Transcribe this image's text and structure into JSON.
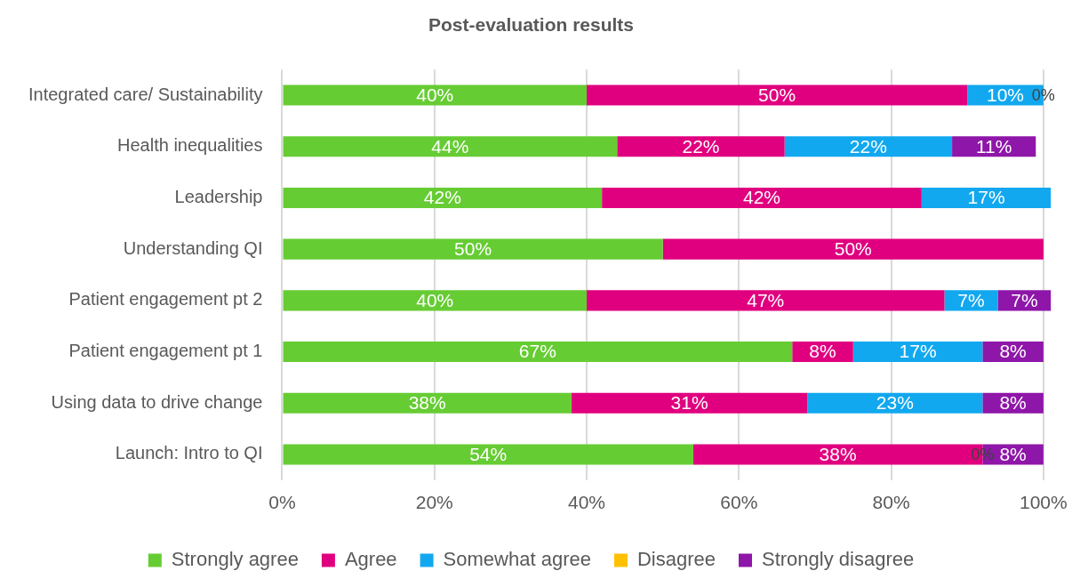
{
  "chart_data": {
    "type": "bar",
    "title": "Post-evaluation results",
    "orientation": "horizontal",
    "stacked": true,
    "categories": [
      "Integrated care/ Sustainability",
      "Health inequalities",
      "Leadership",
      "Understanding QI",
      "Patient engagement pt 2",
      "Patient engagement pt 1",
      "Using data to drive change",
      "Launch: Intro to QI"
    ],
    "series": [
      {
        "name": "Strongly agree",
        "color": "#66cc33",
        "values": [
          40,
          44,
          42,
          50,
          40,
          67,
          38,
          54
        ],
        "value_labels": [
          "40%",
          "44%",
          "42%",
          "50%",
          "40%",
          "67%",
          "38%",
          "54%"
        ]
      },
      {
        "name": "Agree",
        "color": "#e0007f",
        "values": [
          50,
          22,
          42,
          50,
          47,
          8,
          31,
          38
        ],
        "value_labels": [
          "50%",
          "22%",
          "42%",
          "50%",
          "47%",
          "8%",
          "31%",
          "38%"
        ]
      },
      {
        "name": "Somewhat agree",
        "color": "#12a8ef",
        "values": [
          10,
          22,
          17,
          null,
          7,
          17,
          23,
          0
        ],
        "value_labels": [
          "10%",
          "22%",
          "17%",
          null,
          "7%",
          "17%",
          "23%",
          "0%"
        ]
      },
      {
        "name": "Disagree",
        "color": "#ffc000",
        "values": [
          0,
          null,
          null,
          null,
          null,
          null,
          null,
          null
        ],
        "value_labels": [
          "0%",
          null,
          null,
          null,
          null,
          null,
          null,
          null
        ]
      },
      {
        "name": "Strongly disagree",
        "color": "#8e16a8",
        "values": [
          null,
          11,
          null,
          null,
          7,
          8,
          8,
          8
        ],
        "value_labels": [
          null,
          "11%",
          null,
          null,
          "7%",
          "8%",
          "8%",
          "8%"
        ]
      }
    ],
    "xlim": [
      0,
      101
    ],
    "xticks": [
      {
        "value": 0,
        "label": "0%"
      },
      {
        "value": 20,
        "label": "20%"
      },
      {
        "value": 40,
        "label": "40%"
      },
      {
        "value": 60,
        "label": "60%"
      },
      {
        "value": 80,
        "label": "80%"
      },
      {
        "value": 100,
        "label": "100%"
      }
    ],
    "grid": "x",
    "legend": "bottom"
  }
}
